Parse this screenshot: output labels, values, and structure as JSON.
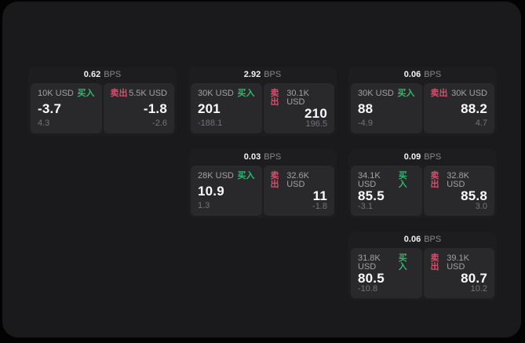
{
  "labels": {
    "bps": "BPS",
    "buy": "买入",
    "sell": "卖出"
  },
  "colors": {
    "buy_green": "#35b56f",
    "sell_red": "#d44f6e",
    "window_bg": "#1a1a1c",
    "card_bg": "#1d1d1f",
    "panel_bg": "#29292b"
  },
  "cards": [
    {
      "bps": "0.62",
      "buy": {
        "amount": "10K USD",
        "price": "-3.7",
        "sub": "4.3"
      },
      "sell": {
        "amount": "5.5K USD",
        "price": "-1.8",
        "sub": "-2.6"
      }
    },
    {
      "bps": "2.92",
      "buy": {
        "amount": "30K USD",
        "price": "201",
        "sub": "-188.1"
      },
      "sell": {
        "amount": "30.1K USD",
        "price": "210",
        "sub": "196.5"
      }
    },
    {
      "bps": "0.06",
      "buy": {
        "amount": "30K USD",
        "price": "88",
        "sub": "-4.9"
      },
      "sell": {
        "amount": "30K USD",
        "price": "88.2",
        "sub": "4.7"
      }
    },
    {
      "bps": "0.03",
      "buy": {
        "amount": "28K USD",
        "price": "10.9",
        "sub": "1.3"
      },
      "sell": {
        "amount": "32.6K USD",
        "price": "11",
        "sub": "-1.8"
      }
    },
    {
      "bps": "0.09",
      "buy": {
        "amount": "34.1K USD",
        "price": "85.5",
        "sub": "-3.1"
      },
      "sell": {
        "amount": "32.8K USD",
        "price": "85.8",
        "sub": "3.0"
      }
    },
    {
      "bps": "0.06",
      "buy": {
        "amount": "31.8K USD",
        "price": "80.5",
        "sub": "-10.8"
      },
      "sell": {
        "amount": "39.1K USD",
        "price": "80.7",
        "sub": "10.2"
      }
    }
  ]
}
